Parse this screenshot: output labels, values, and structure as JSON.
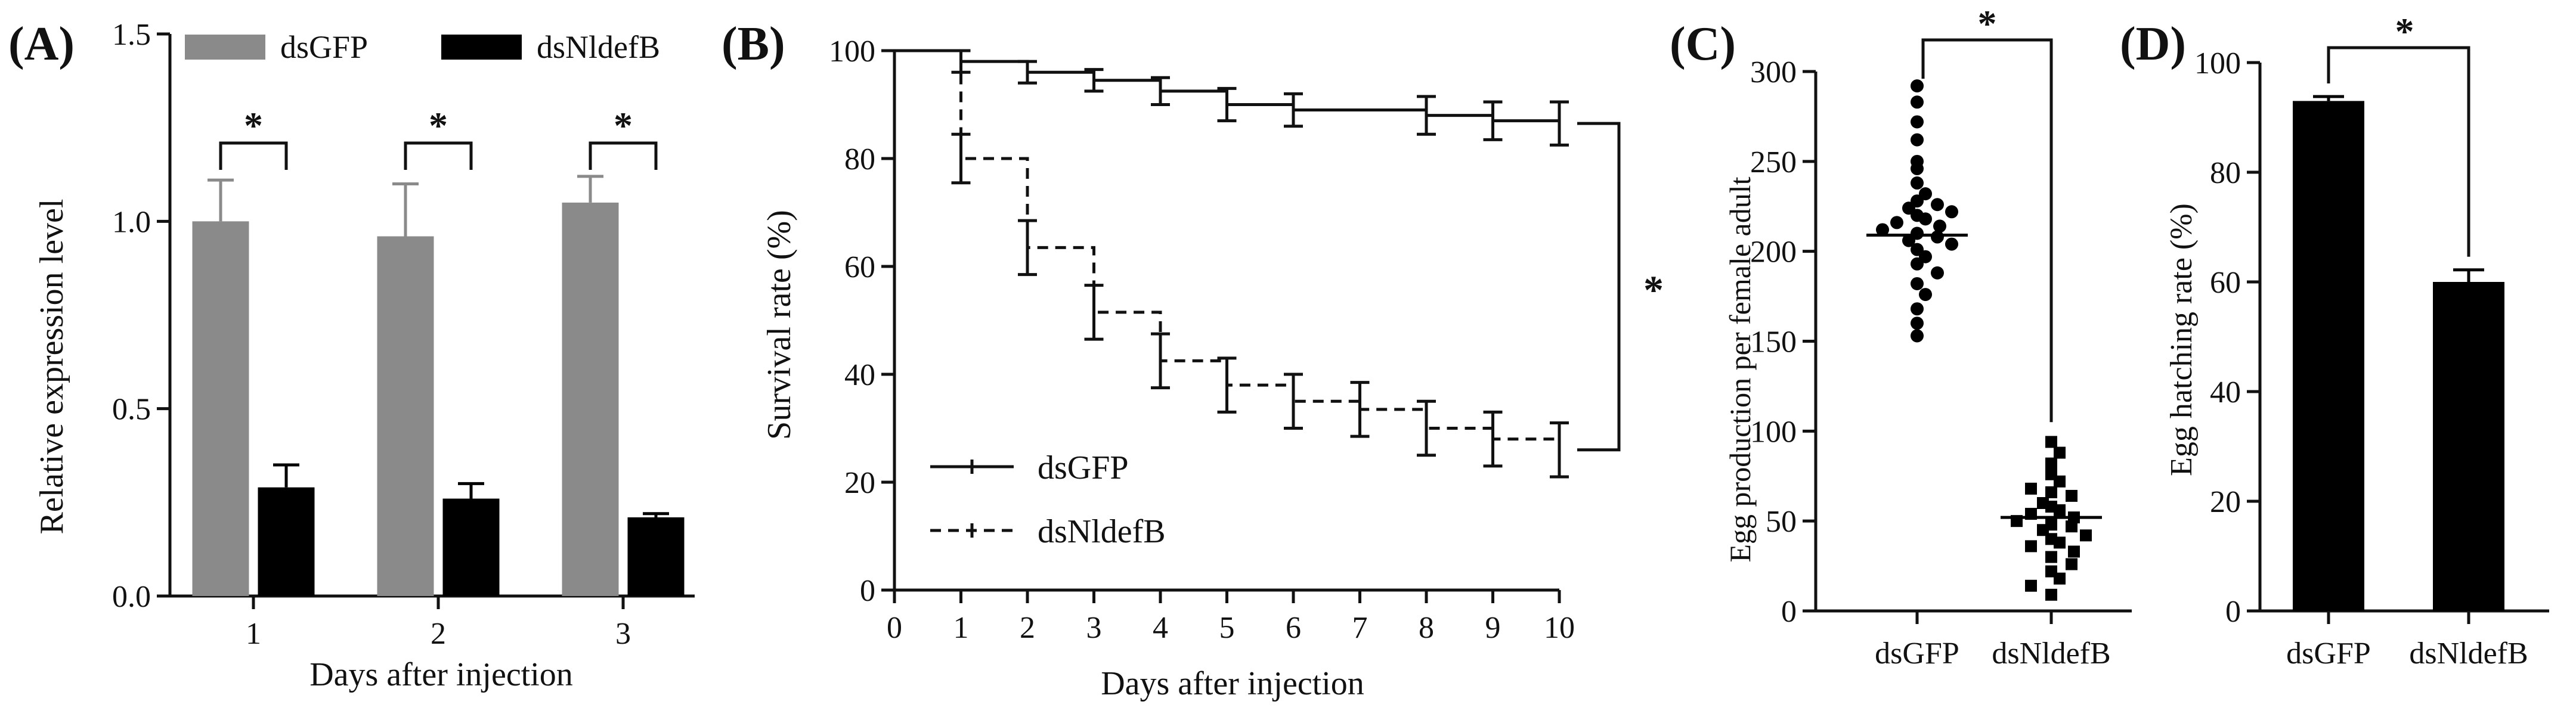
{
  "figure": {
    "x_label": "Days after injection"
  },
  "chart_data": [
    {
      "id": "A",
      "panel_label": "(A)",
      "type": "bar",
      "title": "",
      "xlabel": "Days after injection",
      "ylabel": "Relative expression level",
      "categories": [
        "1",
        "2",
        "3"
      ],
      "ylim": [
        0,
        1.5
      ],
      "yticks": [
        0.0,
        0.5,
        1.0,
        1.5
      ],
      "ytick_labels": [
        "0.0",
        "0.5",
        "1.0",
        "1.5"
      ],
      "legend_position": "top",
      "series": [
        {
          "name": "dsGFP",
          "color": "#8a8a8a",
          "values": [
            1.0,
            0.96,
            1.05
          ],
          "errors": [
            0.11,
            0.14,
            0.07
          ]
        },
        {
          "name": "dsNldefB",
          "color": "#000000",
          "values": [
            0.29,
            0.26,
            0.21
          ],
          "errors": [
            0.06,
            0.04,
            0.01
          ]
        }
      ],
      "significance": [
        {
          "category": "1",
          "label": "*"
        },
        {
          "category": "2",
          "label": "*"
        },
        {
          "category": "3",
          "label": "*"
        }
      ]
    },
    {
      "id": "B",
      "panel_label": "(B)",
      "type": "line",
      "title": "",
      "xlabel": "Days after injection",
      "ylabel": "Survival rate (%)",
      "xlim": [
        0,
        10
      ],
      "ylim": [
        0,
        100
      ],
      "xticks": [
        0,
        1,
        2,
        3,
        4,
        5,
        6,
        7,
        8,
        9,
        10
      ],
      "xtick_labels": [
        "0",
        "1",
        "2",
        "3",
        "4",
        "5",
        "6",
        "7",
        "8",
        "9",
        "10"
      ],
      "yticks": [
        0,
        20,
        40,
        60,
        80,
        100
      ],
      "ytick_labels": [
        "0",
        "20",
        "40",
        "60",
        "80",
        "100"
      ],
      "legend_position": "bottom-left",
      "series": [
        {
          "name": "dsGFP",
          "style": "solid",
          "x": [
            0,
            1,
            2,
            3,
            4,
            5,
            6,
            7,
            8,
            9,
            10
          ],
          "y": [
            100,
            98,
            96,
            94.5,
            92.5,
            90,
            89,
            89,
            88,
            87,
            86.5
          ],
          "errors": [
            0,
            2,
            2,
            2,
            2.5,
            3,
            3,
            0,
            3.5,
            3.5,
            4
          ]
        },
        {
          "name": "dsNldefB",
          "style": "dashed",
          "x": [
            0,
            1,
            2,
            3,
            4,
            5,
            6,
            7,
            8,
            9,
            10
          ],
          "y": [
            100,
            80,
            63.5,
            51.5,
            42.5,
            38,
            35,
            33.5,
            30,
            28,
            26
          ],
          "errors": [
            0,
            4.5,
            5,
            5,
            5,
            5,
            5,
            5,
            5,
            5,
            5
          ]
        }
      ],
      "significance": [
        {
          "label": "*"
        }
      ]
    },
    {
      "id": "C",
      "panel_label": "(C)",
      "type": "scatter",
      "title": "",
      "xlabel": "",
      "ylabel": "Egg production per female adult",
      "categories": [
        "dsGFP",
        "dsNldefB"
      ],
      "ylim": [
        0,
        300
      ],
      "yticks": [
        0,
        50,
        100,
        150,
        200,
        250,
        300
      ],
      "ytick_labels": [
        "0",
        "50",
        "100",
        "150",
        "200",
        "250",
        "300"
      ],
      "series": [
        {
          "name": "dsGFP",
          "marker": "circle",
          "mean": 209,
          "values": [
            292,
            283,
            272,
            262,
            250,
            246,
            238,
            232,
            228,
            226,
            224,
            222,
            220,
            218,
            216,
            214,
            212,
            210,
            208,
            206,
            204,
            201,
            197,
            193,
            188,
            182,
            176,
            168,
            160,
            153
          ]
        },
        {
          "name": "dsNldefB",
          "marker": "square",
          "mean": 52,
          "values": [
            94,
            88,
            82,
            76,
            72,
            68,
            66,
            64,
            60,
            58,
            56,
            54,
            52,
            50,
            48,
            47,
            45,
            42,
            40,
            38,
            36,
            33,
            30,
            26,
            22,
            18,
            14,
            9
          ]
        }
      ],
      "significance": [
        {
          "label": "*"
        }
      ]
    },
    {
      "id": "D",
      "panel_label": "(D)",
      "type": "bar",
      "title": "",
      "xlabel": "",
      "ylabel": "Egg hatching rate (%)",
      "categories": [
        "dsGFP",
        "dsNldefB"
      ],
      "ylim": [
        0,
        100
      ],
      "yticks": [
        0,
        20,
        40,
        60,
        80,
        100
      ],
      "ytick_labels": [
        "0",
        "20",
        "40",
        "60",
        "80",
        "100"
      ],
      "values": [
        93,
        60
      ],
      "errors": [
        0.8,
        2.2
      ],
      "color": "#000000",
      "significance": [
        {
          "label": "*"
        }
      ]
    }
  ]
}
